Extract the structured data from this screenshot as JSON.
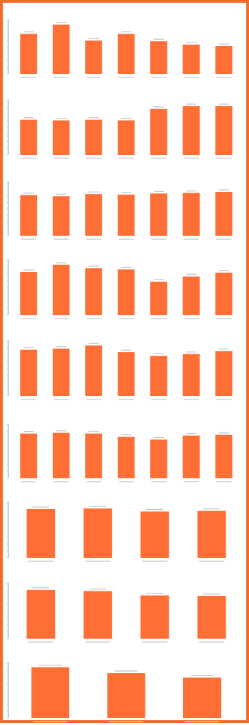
{
  "accent_color": "#ff6f35",
  "frame_color": "#f26b2a",
  "chart_data": [
    {
      "type": "bar",
      "title": "",
      "categories": [
        "",
        "",
        "",
        "",
        "",
        "",
        ""
      ],
      "values": [
        60,
        74,
        50,
        60,
        49,
        44,
        42
      ],
      "ylim": [
        0,
        80
      ],
      "grid": false
    },
    {
      "type": "bar",
      "title": "",
      "categories": [
        "",
        "",
        "",
        "",
        "",
        "",
        ""
      ],
      "values": [
        52,
        51,
        52,
        51,
        68,
        72,
        72
      ],
      "ylim": [
        0,
        80
      ],
      "grid": false
    },
    {
      "type": "bar",
      "title": "",
      "categories": [
        "",
        "",
        "",
        "",
        "",
        "",
        ""
      ],
      "values": [
        76,
        74,
        78,
        77,
        79,
        80,
        82
      ],
      "ylim": [
        0,
        100
      ],
      "grid": false
    },
    {
      "type": "bar",
      "title": "",
      "categories": [
        "",
        "",
        "",
        "",
        "",
        "",
        ""
      ],
      "values": [
        67,
        78,
        73,
        71,
        52,
        60,
        66
      ],
      "ylim": [
        0,
        85
      ],
      "grid": false
    },
    {
      "type": "bar",
      "title": "",
      "categories": [
        "",
        "",
        "",
        "",
        "",
        "",
        ""
      ],
      "values": [
        76,
        78,
        83,
        72,
        66,
        69,
        74
      ],
      "ylim": [
        0,
        90
      ],
      "grid": false
    },
    {
      "type": "bar",
      "title": "",
      "categories": [
        "",
        "",
        "",
        "",
        "",
        "",
        ""
      ],
      "values": [
        67,
        68,
        67,
        62,
        58,
        64,
        65
      ],
      "ylim": [
        0,
        80
      ],
      "grid": false
    },
    {
      "type": "bar",
      "title": "",
      "categories": [
        "",
        "",
        "",
        ""
      ],
      "values": [
        80,
        81,
        76,
        77
      ],
      "ylim": [
        0,
        90
      ],
      "grid": false
    },
    {
      "type": "bar",
      "title": "",
      "categories": [
        "",
        "",
        "",
        ""
      ],
      "values": [
        80,
        78,
        71,
        70
      ],
      "ylim": [
        0,
        90
      ],
      "grid": false
    },
    {
      "type": "bar",
      "title": "",
      "categories": [
        "",
        "",
        ""
      ],
      "values": [
        79,
        70,
        63
      ],
      "ylim": [
        0,
        85
      ],
      "grid": false
    }
  ]
}
